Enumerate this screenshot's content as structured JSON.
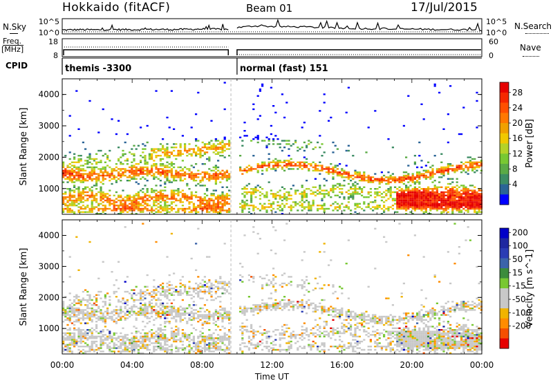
{
  "header": {
    "title": "Hokkaido (fitACF)",
    "beam": "Beam 01",
    "date": "17/Jul/2015"
  },
  "colors": {
    "power": [
      "#0000ff",
      "#2a6496",
      "#3c8c64",
      "#5aaa46",
      "#78c832",
      "#b4d228",
      "#f0c800",
      "#f0a000",
      "#ff7800",
      "#ff5000",
      "#f52800",
      "#e60000"
    ],
    "velocity": [
      "#e60000",
      "#f55000",
      "#ff8c00",
      "#f0b400",
      "#c8c8c8",
      "#c8c8c8",
      "#78c832",
      "#3c8c3c",
      "#3c64aa",
      "#2a3cb4",
      "#1e28a0",
      "#0000c8"
    ],
    "ground_scatter": "#c8c8c8"
  },
  "chart_data": [
    {
      "type": "line",
      "name_label": "N.Sky",
      "right_label": "N.Search",
      "left_ticks": [
        "10^5",
        "10^0"
      ],
      "right_ticks": [
        "10^5",
        "10^0"
      ],
      "data_gap_hours": [
        9.5,
        10.0
      ],
      "series": [
        {
          "x": [
            0.0,
            1.0,
            2.0,
            3.0,
            4.0,
            5.0,
            6.0,
            7.0,
            8.0,
            9.0,
            9.5
          ],
          "values": [
            0.4,
            0.5,
            0.45,
            0.55,
            0.5,
            0.6,
            0.55,
            0.6,
            0.7,
            0.65,
            0.6
          ]
        },
        {
          "x": [
            10.0,
            11.0,
            12.0,
            13.0,
            14.0,
            15.0,
            16.0,
            17.0,
            18.0,
            19.0,
            20.0,
            21.0,
            22.0,
            23.0,
            24.0
          ],
          "values": [
            1.2,
            1.8,
            1.6,
            1.5,
            1.4,
            1.2,
            1.0,
            0.9,
            0.8,
            0.7,
            0.7,
            0.6,
            0.55,
            0.5,
            0.45
          ]
        }
      ]
    },
    {
      "type": "line",
      "name_label": "Freq.",
      "unit_label": "[MHz]",
      "right_label": "Nave",
      "left_ticks": [
        "18",
        "8"
      ],
      "right_ticks": [
        "60",
        "0"
      ],
      "data_gap_hours": [
        9.5,
        10.0
      ]
    },
    {
      "type": "table",
      "name_label": "CPID",
      "segments": [
        {
          "label": "themis -3300",
          "x_start": 0.0,
          "x_end": 9.5
        },
        {
          "label": "normal (fast) 151",
          "x_start": 10.0,
          "x_end": 24.0
        }
      ]
    },
    {
      "type": "heatmap",
      "ylabel": "Slant Range [km]",
      "xlabel": "",
      "colorbar_label": "Power [dB]",
      "colorbar_ticks": [
        "28",
        "24",
        "20",
        "16",
        "12",
        "8",
        "4"
      ],
      "xlim": [
        0,
        24
      ],
      "ylim": [
        180,
        4500
      ],
      "yticks": [
        "1000",
        "2000",
        "3000",
        "4000"
      ],
      "data_gap_hours": [
        9.5,
        10.0
      ]
    },
    {
      "type": "heatmap",
      "ylabel": "Slant Range [km]",
      "xlabel": "Time UT",
      "colorbar_label": "Velocity [m s^-1]",
      "colorbar_ticks": [
        "200",
        "100",
        "50",
        "15",
        "-15",
        "-50",
        "-100",
        "-200"
      ],
      "xlim": [
        0,
        24
      ],
      "ylim": [
        180,
        4500
      ],
      "yticks": [
        "1000",
        "2000",
        "3000",
        "4000"
      ],
      "xticks": [
        "00:00",
        "04:00",
        "08:00",
        "12:00",
        "16:00",
        "20:00",
        "00:00"
      ],
      "data_gap_hours": [
        9.5,
        10.0
      ]
    }
  ]
}
